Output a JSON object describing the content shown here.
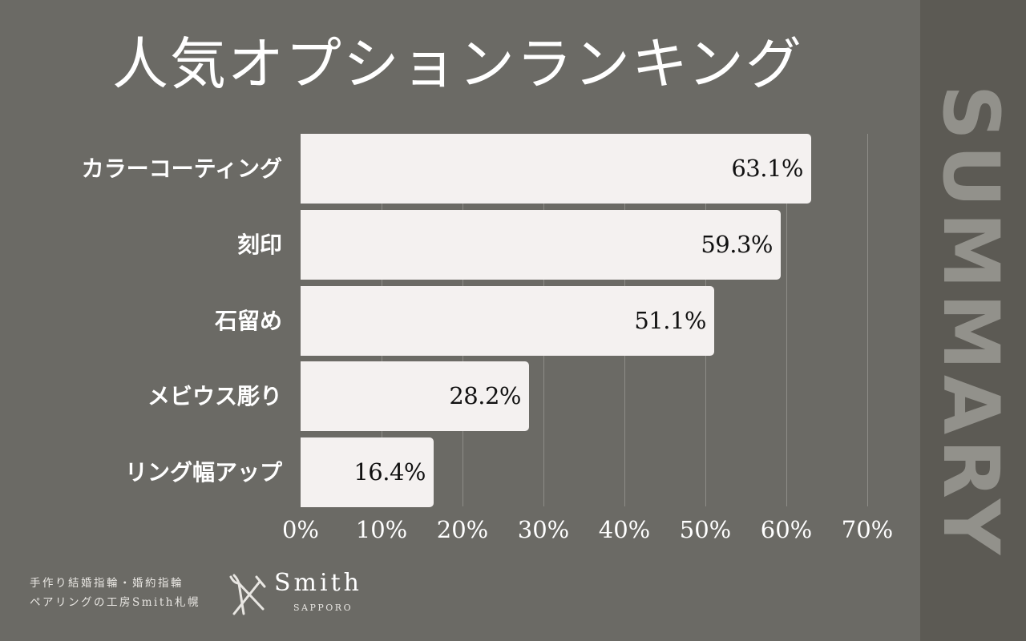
{
  "header": {
    "title": "人気オプションランキング"
  },
  "sidebar": {
    "label": "SUMMARY"
  },
  "colors": {
    "background": "#6b6a65",
    "sidebar": "#5c5a54",
    "sidebar_text": "#92918b",
    "bar": "#f4f1f0",
    "gridline": "#8e8d88"
  },
  "chart_data": {
    "type": "bar",
    "orientation": "horizontal",
    "title": "人気オプションランキング",
    "categories": [
      "カラーコーティング",
      "刻印",
      "石留め",
      "メビウス彫り",
      "リング幅アップ"
    ],
    "values": [
      63.1,
      59.3,
      51.1,
      28.2,
      16.4
    ],
    "value_labels": [
      "63.1%",
      "59.3%",
      "51.1%",
      "28.2%",
      "16.4%"
    ],
    "xlabel": "",
    "ylabel": "",
    "xlim": [
      0,
      70
    ],
    "x_ticks": [
      "0%",
      "10%",
      "20%",
      "30%",
      "40%",
      "50%",
      "60%",
      "70%"
    ],
    "grid": true,
    "legend": null
  },
  "footer": {
    "tagline_line1": "手作り結婚指輪・婚約指輪",
    "tagline_line2": "ペアリングの工房Smith札幌",
    "logo_name": "Smith",
    "logo_sub": "SAPPORO",
    "logo_icon": "pliers-hammer-icon"
  }
}
